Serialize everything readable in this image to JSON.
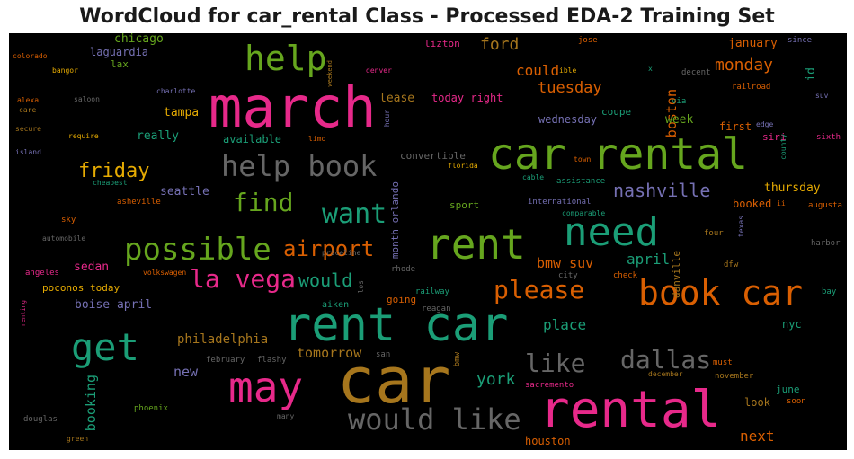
{
  "title": "WordCloud for car_rental Class - Processed EDA-2 Training Set",
  "words": [
    {
      "text": "march",
      "color": "#e7298a",
      "size": 62
    },
    {
      "text": "car rental",
      "color": "#66a61e",
      "size": 48
    },
    {
      "text": "rent car",
      "color": "#1b9e77",
      "size": 52
    },
    {
      "text": "car",
      "color": "#a6761d",
      "size": 70
    },
    {
      "text": "rental",
      "color": "#e7298a",
      "size": 56
    },
    {
      "text": "rent",
      "color": "#66a61e",
      "size": 46
    },
    {
      "text": "need",
      "color": "#1b9e77",
      "size": 44
    },
    {
      "text": "book car",
      "color": "#d95f02",
      "size": 38
    },
    {
      "text": "may",
      "color": "#e7298a",
      "size": 46
    },
    {
      "text": "get",
      "color": "#1b9e77",
      "size": 42
    },
    {
      "text": "help",
      "color": "#66a61e",
      "size": 38
    },
    {
      "text": "help book",
      "color": "#666666",
      "size": 32
    },
    {
      "text": "possible",
      "color": "#66a61e",
      "size": 34
    },
    {
      "text": "would like",
      "color": "#666666",
      "size": 32
    },
    {
      "text": "want",
      "color": "#1b9e77",
      "size": 30
    },
    {
      "text": "find",
      "color": "#66a61e",
      "size": 28
    },
    {
      "text": "la vega",
      "color": "#e7298a",
      "size": 28
    },
    {
      "text": "airport",
      "color": "#d95f02",
      "size": 24
    },
    {
      "text": "please",
      "color": "#d95f02",
      "size": 28
    },
    {
      "text": "like",
      "color": "#666666",
      "size": 28
    },
    {
      "text": "dallas",
      "color": "#666666",
      "size": 28
    },
    {
      "text": "friday",
      "color": "#e6ab02",
      "size": 22
    },
    {
      "text": "nashville",
      "color": "#7570b3",
      "size": 20
    },
    {
      "text": "would",
      "color": "#1b9e77",
      "size": 20
    },
    {
      "text": "york",
      "color": "#1b9e77",
      "size": 18
    },
    {
      "text": "monday",
      "color": "#d95f02",
      "size": 18
    },
    {
      "text": "tuesday",
      "color": "#d95f02",
      "size": 17
    },
    {
      "text": "ford",
      "color": "#a6761d",
      "size": 18
    },
    {
      "text": "boston",
      "color": "#d95f02",
      "size": 15
    },
    {
      "text": "could",
      "color": "#d95f02",
      "size": 16
    },
    {
      "text": "april",
      "color": "#1b9e77",
      "size": 16
    },
    {
      "text": "bmw suv",
      "color": "#d95f02",
      "size": 15
    },
    {
      "text": "place",
      "color": "#1b9e77",
      "size": 16
    },
    {
      "text": "next",
      "color": "#d95f02",
      "size": 16
    },
    {
      "text": "booking",
      "color": "#1b9e77",
      "size": 15
    },
    {
      "text": "tomorrow",
      "color": "#a6761d",
      "size": 15
    },
    {
      "text": "philadelphia",
      "color": "#a6761d",
      "size": 14
    },
    {
      "text": "new",
      "color": "#7570b3",
      "size": 15
    },
    {
      "text": "sedan",
      "color": "#e7298a",
      "size": 13
    },
    {
      "text": "boise april",
      "color": "#7570b3",
      "size": 13
    },
    {
      "text": "poconos today",
      "color": "#e6ab02",
      "size": 11
    },
    {
      "text": "seattle",
      "color": "#7570b3",
      "size": 13
    },
    {
      "text": "chicago",
      "color": "#66a61e",
      "size": 13
    },
    {
      "text": "laguardia",
      "color": "#7570b3",
      "size": 12
    },
    {
      "text": "lax",
      "color": "#66a61e",
      "size": 11
    },
    {
      "text": "tampa",
      "color": "#e6ab02",
      "size": 13
    },
    {
      "text": "really",
      "color": "#1b9e77",
      "size": 13
    },
    {
      "text": "available",
      "color": "#1b9e77",
      "size": 12
    },
    {
      "text": "lease",
      "color": "#a6761d",
      "size": 13
    },
    {
      "text": "today right",
      "color": "#e7298a",
      "size": 12
    },
    {
      "text": "wednesday",
      "color": "#7570b3",
      "size": 12
    },
    {
      "text": "coupe",
      "color": "#1b9e77",
      "size": 11
    },
    {
      "text": "week",
      "color": "#66a61e",
      "size": 13
    },
    {
      "text": "first",
      "color": "#d95f02",
      "size": 12
    },
    {
      "text": "january",
      "color": "#d95f02",
      "size": 13
    },
    {
      "text": "id",
      "color": "#1b9e77",
      "size": 13
    },
    {
      "text": "thursday",
      "color": "#e6ab02",
      "size": 13
    },
    {
      "text": "booked",
      "color": "#d95f02",
      "size": 12
    },
    {
      "text": "siri",
      "color": "#e7298a",
      "size": 11
    },
    {
      "text": "danville",
      "color": "#a6761d",
      "size": 11
    },
    {
      "text": "june",
      "color": "#1b9e77",
      "size": 11
    },
    {
      "text": "look",
      "color": "#a6761d",
      "size": 12
    },
    {
      "text": "nyc",
      "color": "#1b9e77",
      "size": 12
    },
    {
      "text": "houston",
      "color": "#d95f02",
      "size": 12
    },
    {
      "text": "convertible",
      "color": "#666666",
      "size": 11
    },
    {
      "text": "month orlando",
      "color": "#7570b3",
      "size": 11
    },
    {
      "text": "sport",
      "color": "#66a61e",
      "size": 11
    },
    {
      "text": "international",
      "color": "#7570b3",
      "size": 9
    },
    {
      "text": "assistance",
      "color": "#1b9e77",
      "size": 9
    },
    {
      "text": "lizton",
      "color": "#e7298a",
      "size": 11
    },
    {
      "text": "jose",
      "color": "#d95f02",
      "size": 9
    },
    {
      "text": "ible",
      "color": "#e6ab02",
      "size": 8
    },
    {
      "text": "since",
      "color": "#7570b3",
      "size": 9
    },
    {
      "text": "decent",
      "color": "#666666",
      "size": 9
    },
    {
      "text": "railroad",
      "color": "#d95f02",
      "size": 9
    },
    {
      "text": "suv",
      "color": "#7570b3",
      "size": 8
    },
    {
      "text": "sixth",
      "color": "#e7298a",
      "size": 9
    },
    {
      "text": "via",
      "color": "#1b9e77",
      "size": 9
    },
    {
      "text": "edge",
      "color": "#7570b3",
      "size": 8
    },
    {
      "text": "county",
      "color": "#1b9e77",
      "size": 8
    },
    {
      "text": "augusta",
      "color": "#d95f02",
      "size": 9
    },
    {
      "text": "texas",
      "color": "#7570b3",
      "size": 8
    },
    {
      "text": "four",
      "color": "#a6761d",
      "size": 9
    },
    {
      "text": "harbor",
      "color": "#666666",
      "size": 9
    },
    {
      "text": "dfw",
      "color": "#a6761d",
      "size": 9
    },
    {
      "text": "bay",
      "color": "#1b9e77",
      "size": 9
    },
    {
      "text": "must",
      "color": "#d95f02",
      "size": 9
    },
    {
      "text": "november",
      "color": "#a6761d",
      "size": 9
    },
    {
      "text": "december",
      "color": "#a6761d",
      "size": 8
    },
    {
      "text": "soon",
      "color": "#d95f02",
      "size": 9
    },
    {
      "text": "sacremento",
      "color": "#e7298a",
      "size": 9
    },
    {
      "text": "check",
      "color": "#d95f02",
      "size": 9
    },
    {
      "text": "city",
      "color": "#666666",
      "size": 9
    },
    {
      "text": "railway",
      "color": "#1b9e77",
      "size": 9
    },
    {
      "text": "reagan",
      "color": "#666666",
      "size": 9
    },
    {
      "text": "going",
      "color": "#d95f02",
      "size": 11
    },
    {
      "text": "rhode",
      "color": "#666666",
      "size": 9
    },
    {
      "text": "aiken",
      "color": "#1b9e77",
      "size": 10
    },
    {
      "text": "bmw",
      "color": "#a6761d",
      "size": 9
    },
    {
      "text": "san",
      "color": "#666666",
      "size": 9
    },
    {
      "text": "flashy",
      "color": "#666666",
      "size": 9
    },
    {
      "text": "february",
      "color": "#666666",
      "size": 9
    },
    {
      "text": "many",
      "color": "#666666",
      "size": 8
    },
    {
      "text": "phoenix",
      "color": "#66a61e",
      "size": 9
    },
    {
      "text": "green",
      "color": "#a6761d",
      "size": 8
    },
    {
      "text": "douglas",
      "color": "#666666",
      "size": 9
    },
    {
      "text": "renting",
      "color": "#e7298a",
      "size": 7
    },
    {
      "text": "angeles",
      "color": "#e7298a",
      "size": 9
    },
    {
      "text": "volkswagen",
      "color": "#d95f02",
      "size": 8
    },
    {
      "text": "priceline",
      "color": "#666666",
      "size": 8
    },
    {
      "text": "los",
      "color": "#666666",
      "size": 8
    },
    {
      "text": "sky",
      "color": "#d95f02",
      "size": 9
    },
    {
      "text": "automobile",
      "color": "#666666",
      "size": 8
    },
    {
      "text": "asheville",
      "color": "#d95f02",
      "size": 9
    },
    {
      "text": "cheapest",
      "color": "#1b9e77",
      "size": 8
    },
    {
      "text": "island",
      "color": "#7570b3",
      "size": 8
    },
    {
      "text": "secure",
      "color": "#a6761d",
      "size": 8
    },
    {
      "text": "require",
      "color": "#e6ab02",
      "size": 8
    },
    {
      "text": "alexa",
      "color": "#d95f02",
      "size": 8
    },
    {
      "text": "care",
      "color": "#a6761d",
      "size": 8
    },
    {
      "text": "saloon",
      "color": "#666666",
      "size": 8
    },
    {
      "text": "bangor",
      "color": "#e6ab02",
      "size": 8
    },
    {
      "text": "colorado",
      "color": "#d95f02",
      "size": 8
    },
    {
      "text": "charlotte",
      "color": "#7570b3",
      "size": 8
    },
    {
      "text": "weekend",
      "color": "#a6761d",
      "size": 7
    },
    {
      "text": "denver",
      "color": "#e7298a",
      "size": 8
    },
    {
      "text": "hour",
      "color": "#7570b3",
      "size": 8
    },
    {
      "text": "limo",
      "color": "#d95f02",
      "size": 8
    },
    {
      "text": "florida",
      "color": "#e6ab02",
      "size": 8
    },
    {
      "text": "town",
      "color": "#d95f02",
      "size": 8
    },
    {
      "text": "cable",
      "color": "#1b9e77",
      "size": 8
    },
    {
      "text": "comparable",
      "color": "#1b9e77",
      "size": 8
    },
    {
      "text": "x",
      "color": "#1b9e77",
      "size": 8
    },
    {
      "text": "ii",
      "color": "#d95f02",
      "size": 8
    }
  ]
}
